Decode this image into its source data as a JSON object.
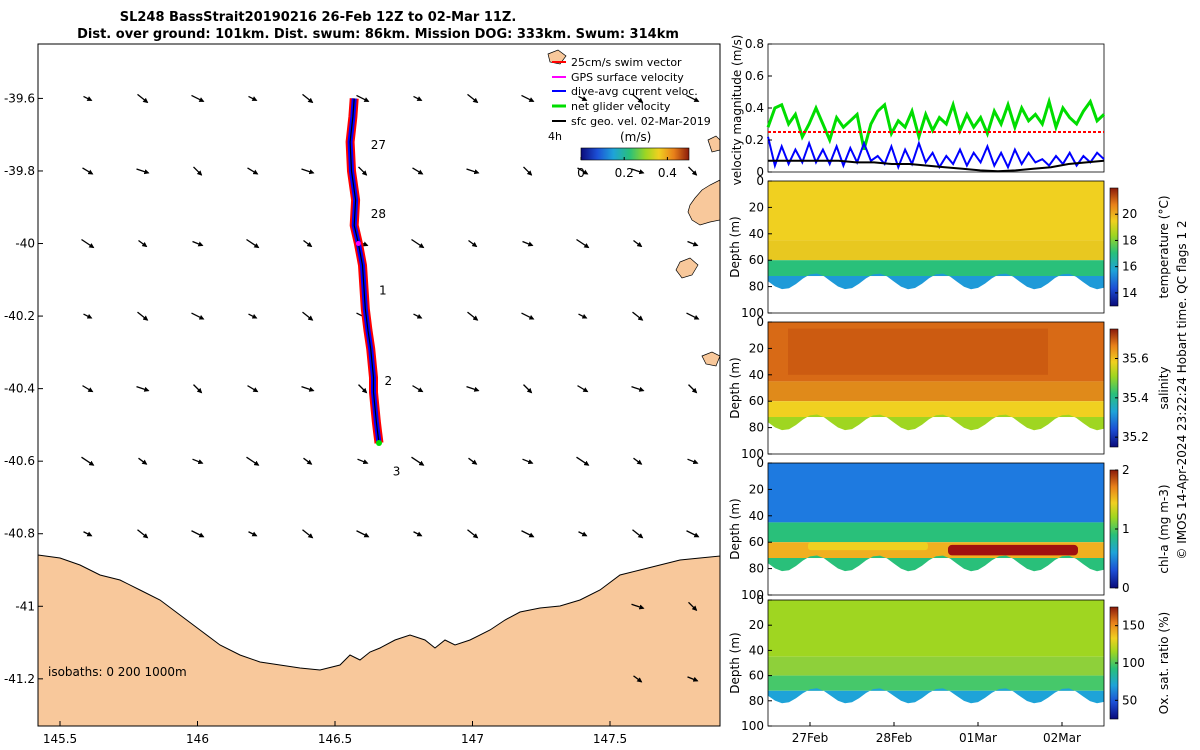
{
  "title_line1": "SL248 BassStrait20190216 26-Feb 12Z to 02-Mar 11Z.",
  "title_line2": "Dist. over ground: 101km. Dist. swum: 86km. Mission DOG: 333km. Swum: 314km",
  "credit": "© IMOS 14-Apr-2024 23:22:24 Hobart time. QC flags 1  2",
  "colors": {
    "land": "#f8c89b",
    "gps": "#ff00ff",
    "current": "#0000ff",
    "net": "#00dd00",
    "sfc": "#000000",
    "swim": "#ff0000"
  },
  "chart_data": [
    {
      "type": "scatter",
      "name": "map",
      "xlim": [
        145.42,
        147.9
      ],
      "ylim": [
        -41.33,
        -39.45
      ],
      "xticks": [
        145.5,
        146,
        146.5,
        147,
        147.5
      ],
      "xtick_labels": [
        "145.5",
        "146",
        "146.5",
        "147",
        "147.5"
      ],
      "yticks": [
        -39.6,
        -39.8,
        -40,
        -40.2,
        -40.4,
        -40.6,
        -40.8,
        -41,
        -41.2
      ],
      "ytick_labels": [
        "-39.6",
        "-39.8",
        "-40",
        "-40.2",
        "-40.4",
        "-40.6",
        "-40.8",
        "-41",
        "-41.2"
      ],
      "legend": [
        {
          "label": "25cm/s swim vector",
          "color": "swim"
        },
        {
          "label": "GPS surface velocity",
          "color": "gps"
        },
        {
          "label": "dive-avg current veloc.",
          "color": "current"
        },
        {
          "label": "net glider velocity",
          "color": "net"
        },
        {
          "label": "sfc geo. vel. 02-Mar-2019",
          "color": "sfc"
        }
      ],
      "legend_placement": "top-right",
      "legend_extra": "4h",
      "colorbar": {
        "label": "(m/s)",
        "range": [
          0,
          0.5
        ],
        "ticks": [
          0,
          0.2,
          0.4
        ],
        "tick_labels": [
          "0",
          "0.2",
          "0.4"
        ]
      },
      "isobaths_label": "isobaths: 0   200  1000m",
      "track": {
        "lon": [
          146.57,
          146.565,
          146.555,
          146.56,
          146.575,
          146.57,
          146.585,
          146.6,
          146.605,
          146.61,
          146.62,
          146.63,
          146.635,
          146.64,
          146.64,
          146.645,
          146.65,
          146.655,
          146.66
        ],
        "lat": [
          -39.6,
          -39.65,
          -39.72,
          -39.8,
          -39.88,
          -39.95,
          -40.0,
          -40.06,
          -40.12,
          -40.18,
          -40.24,
          -40.29,
          -40.33,
          -40.37,
          -40.41,
          -40.45,
          -40.49,
          -40.52,
          -40.55
        ]
      },
      "day_labels": [
        {
          "text": "27",
          "lon": 146.63,
          "lat": -39.74
        },
        {
          "text": "28",
          "lon": 146.63,
          "lat": -39.93
        },
        {
          "text": "1",
          "lon": 146.66,
          "lat": -40.14
        },
        {
          "text": "2",
          "lon": 146.68,
          "lat": -40.39
        },
        {
          "text": "3",
          "lon": 146.71,
          "lat": -40.64
        }
      ],
      "sfc_vectors": {
        "lons": [
          145.6,
          145.8,
          146.0,
          146.2,
          146.4,
          146.6,
          146.8,
          147.0,
          147.2,
          147.4,
          147.6,
          147.8
        ],
        "lats": [
          -39.6,
          -39.8,
          -40.0,
          -40.2,
          -40.4,
          -40.6,
          -40.8,
          -41.0,
          -41.2
        ]
      }
    },
    {
      "type": "line",
      "name": "velocity",
      "ylabel": "velocity magnitude (m/s)",
      "ylim": [
        0,
        0.8
      ],
      "yticks": [
        0,
        0.2,
        0.4,
        0.6,
        0.8
      ],
      "ytick_labels": [
        "0",
        "0.2",
        "0.4",
        "0.6",
        "0.8"
      ],
      "xlim": [
        0,
        4
      ],
      "series": [
        {
          "color": "net",
          "values": [
            0.28,
            0.4,
            0.42,
            0.3,
            0.36,
            0.22,
            0.3,
            0.4,
            0.3,
            0.2,
            0.34,
            0.28,
            0.32,
            0.36,
            0.14,
            0.3,
            0.38,
            0.42,
            0.24,
            0.32,
            0.28,
            0.38,
            0.22,
            0.36,
            0.26,
            0.34,
            0.3,
            0.42,
            0.26,
            0.36,
            0.28,
            0.34,
            0.24,
            0.38,
            0.3,
            0.42,
            0.28,
            0.4,
            0.32,
            0.36,
            0.3,
            0.44,
            0.28,
            0.4,
            0.34,
            0.3,
            0.38,
            0.44,
            0.32,
            0.36
          ]
        },
        {
          "color": "current",
          "values": [
            0.22,
            0.04,
            0.16,
            0.05,
            0.14,
            0.06,
            0.18,
            0.06,
            0.14,
            0.05,
            0.16,
            0.04,
            0.15,
            0.06,
            0.18,
            0.07,
            0.1,
            0.05,
            0.16,
            0.03,
            0.14,
            0.05,
            0.18,
            0.06,
            0.12,
            0.03,
            0.1,
            0.05,
            0.14,
            0.04,
            0.12,
            0.06,
            0.16,
            0.04,
            0.12,
            0.03,
            0.14,
            0.05,
            0.12,
            0.06,
            0.08,
            0.04,
            0.1,
            0.05,
            0.12,
            0.04,
            0.1,
            0.06,
            0.12,
            0.08
          ]
        },
        {
          "color": "sfc",
          "values": [
            0.07,
            0.07,
            0.07,
            0.07,
            0.07,
            0.06,
            0.06,
            0.05,
            0.05,
            0.04,
            0.03,
            0.02,
            0.01,
            0.005,
            0.01,
            0.02,
            0.03,
            0.05,
            0.06,
            0.07
          ]
        },
        {
          "color": "swim",
          "values": [
            0.25,
            0.25,
            0.25,
            0.25,
            0.25,
            0.25,
            0.25,
            0.25,
            0.25,
            0.25
          ]
        }
      ]
    },
    {
      "type": "heatmap",
      "name": "temperature",
      "ylabel": "Depth (m)",
      "ylim": [
        100,
        0
      ],
      "yticks": [
        0,
        20,
        40,
        60,
        80,
        100
      ],
      "ytick_labels": [
        "0",
        "20",
        "40",
        "60",
        "80",
        "100"
      ],
      "colorbar_label": "temperature (°C)",
      "crange": [
        13,
        22
      ],
      "cticks": [
        14,
        16,
        18,
        20
      ],
      "ctick_labels": [
        "14",
        "16",
        "18",
        "20"
      ]
    },
    {
      "type": "heatmap",
      "name": "salinity",
      "ylabel": "Depth (m)",
      "ylim": [
        100,
        0
      ],
      "yticks": [
        0,
        20,
        40,
        60,
        80,
        100
      ],
      "ytick_labels": [
        "0",
        "20",
        "40",
        "60",
        "80",
        "100"
      ],
      "colorbar_label": "salinity",
      "crange": [
        35.15,
        35.75
      ],
      "cticks": [
        35.2,
        35.4,
        35.6
      ],
      "ctick_labels": [
        "35.2",
        "35.4",
        "35.6"
      ]
    },
    {
      "type": "heatmap",
      "name": "chla",
      "ylabel": "Depth (m)",
      "ylim": [
        100,
        0
      ],
      "yticks": [
        0,
        20,
        40,
        60,
        80,
        100
      ],
      "ytick_labels": [
        "0",
        "20",
        "40",
        "60",
        "80",
        "100"
      ],
      "colorbar_label": "chl-a (mg m-3)",
      "crange": [
        0,
        2
      ],
      "cticks": [
        0,
        1,
        2
      ],
      "ctick_labels": [
        "0",
        "1",
        "2"
      ]
    },
    {
      "type": "heatmap",
      "name": "oxygen",
      "ylabel": "Depth (m)",
      "ylim": [
        100,
        0
      ],
      "yticks": [
        0,
        20,
        40,
        60,
        80,
        100
      ],
      "ytick_labels": [
        "0",
        "20",
        "40",
        "60",
        "80",
        "100"
      ],
      "colorbar_label": "Ox. sat. ratio (%)",
      "crange": [
        25,
        175
      ],
      "cticks": [
        50,
        100,
        150
      ],
      "ctick_labels": [
        "50",
        "100",
        "150"
      ]
    }
  ],
  "time_axis": {
    "ticks": [
      0.5,
      1.5,
      2.5,
      3.5
    ],
    "labels": [
      "27Feb",
      "28Feb",
      "01Mar",
      "02Mar"
    ]
  }
}
